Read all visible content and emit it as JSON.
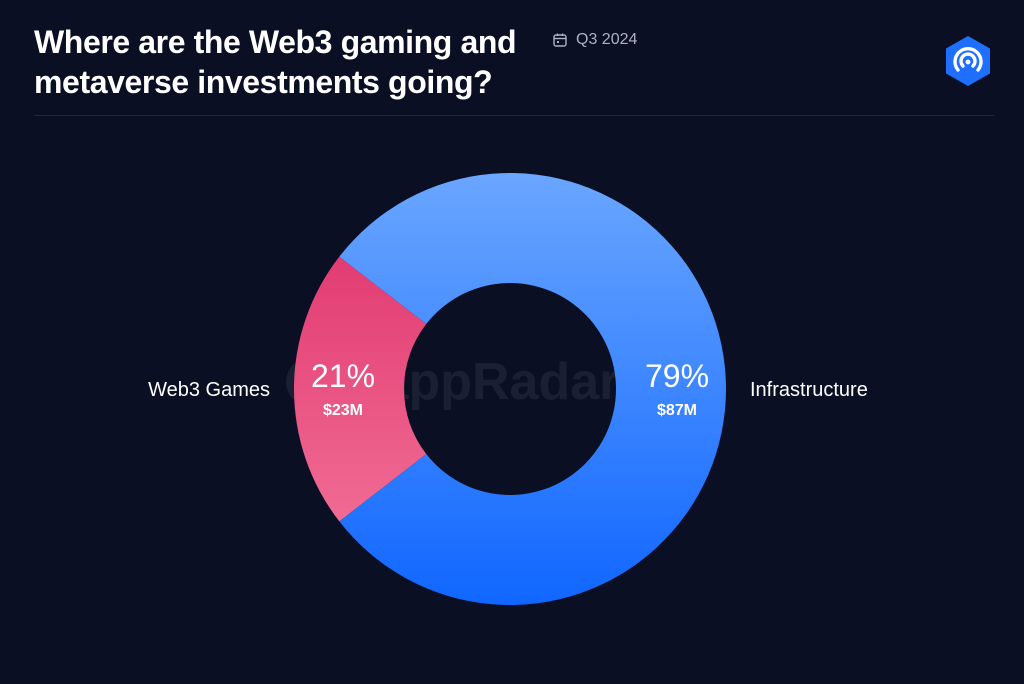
{
  "header": {
    "title": "Where are the Web3 gaming and metaverse investments going?",
    "period": "Q3 2024",
    "calendar_icon": "calendar-icon",
    "brand_icon": "dappradar-logo-icon"
  },
  "watermark": "DappRadar",
  "colors": {
    "background": "#0a0f23",
    "web3_games_top": "#e23c72",
    "web3_games_bottom": "#f06b93",
    "infrastructure_top": "#6aa6ff",
    "infrastructure_bottom": "#1066ff",
    "brand": "#1f6fff"
  },
  "chart_data": {
    "type": "pie",
    "style": "donut",
    "total_unit": "USD millions",
    "slices": [
      {
        "label": "Web3 Games",
        "percent": 21,
        "percent_label": "21%",
        "value": 23,
        "value_label": "$23M"
      },
      {
        "label": "Infrastructure",
        "percent": 79,
        "percent_label": "79%",
        "value": 87,
        "value_label": "$87M"
      }
    ]
  }
}
